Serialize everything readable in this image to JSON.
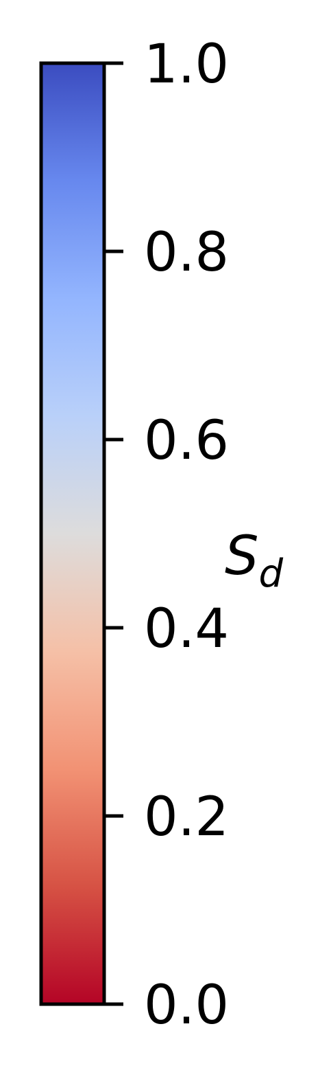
{
  "chart_data": {
    "type": "colorbar",
    "colormap": "coolwarm",
    "orientation": "vertical",
    "label": "S",
    "label_subscript": "d",
    "vlim": [
      0.0,
      1.0
    ],
    "ticks": [
      0.0,
      0.2,
      0.4,
      0.6,
      0.8,
      1.0
    ],
    "tick_labels": [
      "0.0",
      "0.2",
      "0.4",
      "0.6",
      "0.8",
      "1.0"
    ],
    "color_stops": [
      {
        "value": 0.0,
        "color": "#b40426"
      },
      {
        "value": 0.125,
        "color": "#d65244"
      },
      {
        "value": 0.25,
        "color": "#f29274"
      },
      {
        "value": 0.375,
        "color": "#f5c0a7"
      },
      {
        "value": 0.5,
        "color": "#dddcdc"
      },
      {
        "value": 0.625,
        "color": "#b9d0f9"
      },
      {
        "value": 0.75,
        "color": "#93b5fe"
      },
      {
        "value": 0.875,
        "color": "#6788ee"
      },
      {
        "value": 1.0,
        "color": "#3b4cc0"
      }
    ]
  }
}
